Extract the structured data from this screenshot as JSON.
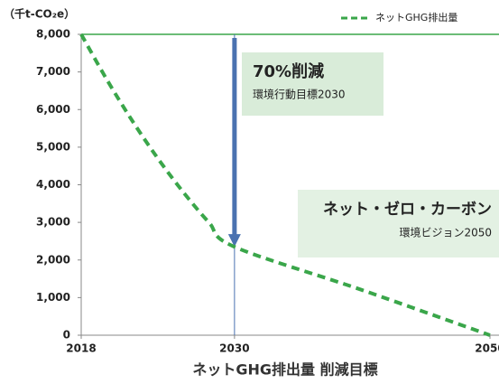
{
  "chart_data": {
    "type": "line",
    "y_axis_label": "（千t-CO₂e）",
    "x_axis_label": "ネットGHG排出量 削減目標",
    "x": [
      2018,
      2020,
      2022,
      2024,
      2026,
      2028,
      2030,
      2040,
      2050
    ],
    "series": [
      {
        "name": "ネットGHG排出量",
        "color": "#3aa64a",
        "values": [
          8000,
          6800,
          5700,
          4700,
          3800,
          3000,
          2350,
          1200,
          0
        ]
      }
    ],
    "xlim": [
      2018,
      2050
    ],
    "xticks": [
      2018,
      2030,
      2050
    ],
    "ylim": [
      0,
      8000
    ],
    "yticks": [
      0,
      {
        "value": 1000,
        "label": "1,000"
      },
      {
        "value": 2000,
        "label": "2,000"
      },
      {
        "value": 3000,
        "label": "3,000"
      },
      {
        "value": 4000,
        "label": "4,000"
      },
      {
        "value": 5000,
        "label": "5,000"
      },
      {
        "value": 6000,
        "label": "6,000"
      },
      {
        "value": 7000,
        "label": "7,000"
      },
      {
        "value": 8000,
        "label": "8,000"
      }
    ],
    "legend": "top-right",
    "annotations": [
      {
        "title": "70%削減",
        "text": "環境行動目標2030"
      },
      {
        "title": "ネット・ゼロ・カーボン",
        "text": "環境ビジョン2050"
      }
    ]
  }
}
